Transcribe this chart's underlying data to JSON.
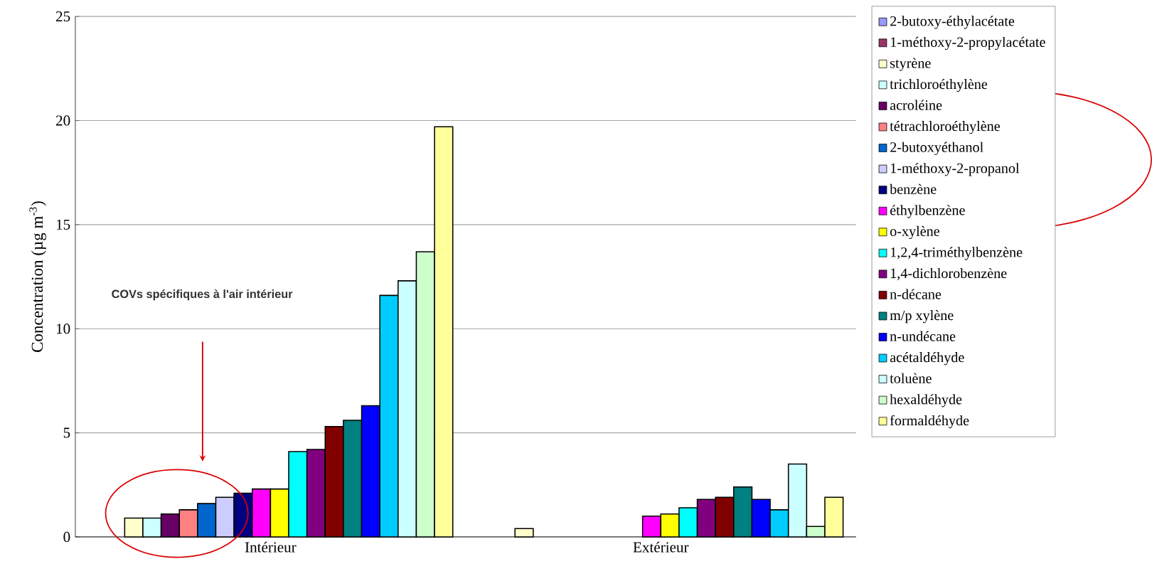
{
  "chart_data": {
    "type": "bar",
    "ylabel": "Concentration (µg m$^{-3}$)",
    "categories": [
      "Intérieur",
      "Extérieur"
    ],
    "ylim": [
      0,
      25
    ],
    "yticks": [
      0,
      5,
      10,
      15,
      20,
      25
    ],
    "grid": "y",
    "legend": "right",
    "annotations": [
      "COVs spécifiques à l'air intérieur"
    ],
    "series": [
      {
        "name": "2-butoxy-éthylacétate",
        "color": "#9999ff",
        "values": [
          null,
          null
        ]
      },
      {
        "name": "1-méthoxy-2-propylacétate",
        "color": "#993366",
        "values": [
          null,
          null
        ]
      },
      {
        "name": "styrène",
        "color": "#ffffcc",
        "values": [
          0.9,
          0.4
        ]
      },
      {
        "name": "trichloroéthylène",
        "color": "#ccffff",
        "values": [
          0.9,
          null
        ]
      },
      {
        "name": "acroléine",
        "color": "#660066",
        "values": [
          1.1,
          null
        ]
      },
      {
        "name": "tétrachloroéthylène",
        "color": "#ff8080",
        "values": [
          1.3,
          null
        ]
      },
      {
        "name": "2-butoxyéthanol",
        "color": "#0066cc",
        "values": [
          1.6,
          null
        ]
      },
      {
        "name": "1-méthoxy-2-propanol",
        "color": "#ccccff",
        "values": [
          1.9,
          null
        ]
      },
      {
        "name": "benzène",
        "color": "#000080",
        "values": [
          2.1,
          null
        ]
      },
      {
        "name": "éthylbenzène",
        "color": "#ff00ff",
        "values": [
          2.3,
          1.0
        ]
      },
      {
        "name": "o-xylène",
        "color": "#ffff00",
        "values": [
          2.3,
          1.1
        ]
      },
      {
        "name": "1,2,4-triméthylbenzène",
        "color": "#00ffff",
        "values": [
          4.1,
          1.4
        ]
      },
      {
        "name": "1,4-dichlorobenzène",
        "color": "#800080",
        "values": [
          4.2,
          1.8
        ]
      },
      {
        "name": "n-décane",
        "color": "#800000",
        "values": [
          5.3,
          1.9
        ]
      },
      {
        "name": "m/p xylène",
        "color": "#008080",
        "values": [
          5.6,
          2.4
        ]
      },
      {
        "name": "n-undécane",
        "color": "#0000ff",
        "values": [
          6.3,
          1.8
        ]
      },
      {
        "name": "acétaldéhyde",
        "color": "#00ccff",
        "values": [
          11.6,
          1.3
        ]
      },
      {
        "name": "toluène",
        "color": "#ccffff",
        "values": [
          12.3,
          3.5
        ]
      },
      {
        "name": "hexaldéhyde",
        "color": "#ccffcc",
        "values": [
          13.7,
          0.5
        ]
      },
      {
        "name": "formaldéhyde",
        "color": "#ffff99",
        "values": [
          19.7,
          1.9
        ]
      }
    ]
  }
}
